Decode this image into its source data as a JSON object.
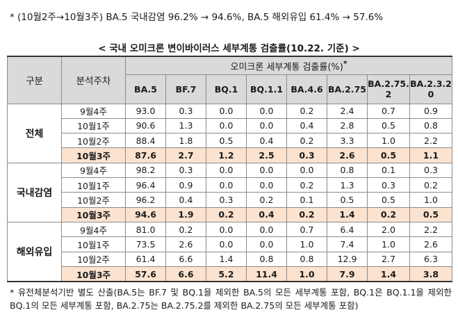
{
  "top_note": "* (10월2주→10월3주) BA.5 국내감염 96.2% → 94.6%, BA.5 해외유입 61.4% → 57.6%",
  "title": "< 국내 오미크론 변이바이러스 세부계통 검출률(10.22. 기준) >",
  "table": {
    "col_group": "구분",
    "col_week": "분석주차",
    "lineage_header": "오미크론 세부계통 검출률(%)",
    "lineage_header_mark": "*",
    "variants": [
      "BA.5",
      "BF.7",
      "BQ.1",
      "BQ.1.1",
      "BA.4.6",
      "BA.2.75",
      "BA.2.75.2",
      "BA.2.3.20"
    ],
    "groups": [
      {
        "name": "전체",
        "rows": [
          {
            "week": "9월4주",
            "values": [
              "93.0",
              "0.3",
              "0.0",
              "0.0",
              "0.2",
              "2.4",
              "0.7",
              "0.9"
            ]
          },
          {
            "week": "10월1주",
            "values": [
              "90.6",
              "1.3",
              "0.0",
              "0.0",
              "0.4",
              "2.8",
              "0.5",
              "0.8"
            ]
          },
          {
            "week": "10월2주",
            "values": [
              "88.4",
              "1.8",
              "0.5",
              "0.4",
              "0.2",
              "3.3",
              "1.0",
              "2.2"
            ]
          },
          {
            "week": "10월3주",
            "values": [
              "87.6",
              "2.7",
              "1.2",
              "2.5",
              "0.3",
              "2.6",
              "0.5",
              "1.1"
            ]
          }
        ]
      },
      {
        "name": "국내감염",
        "rows": [
          {
            "week": "9월4주",
            "values": [
              "98.2",
              "0.3",
              "0.0",
              "0.0",
              "0.0",
              "0.8",
              "0.1",
              "0.3"
            ]
          },
          {
            "week": "10월1주",
            "values": [
              "96.4",
              "0.9",
              "0.0",
              "0.0",
              "0.2",
              "1.3",
              "0.3",
              "0.2"
            ]
          },
          {
            "week": "10월2주",
            "values": [
              "96.2",
              "0.4",
              "0.3",
              "0.2",
              "0.1",
              "0.5",
              "0.5",
              "1.0"
            ]
          },
          {
            "week": "10월3주",
            "values": [
              "94.6",
              "1.9",
              "0.2",
              "0.4",
              "0.2",
              "1.4",
              "0.2",
              "0.5"
            ]
          }
        ]
      },
      {
        "name": "해외유입",
        "rows": [
          {
            "week": "9월4주",
            "values": [
              "81.0",
              "0.2",
              "0.0",
              "0.0",
              "0.7",
              "6.4",
              "2.0",
              "2.2"
            ]
          },
          {
            "week": "10월1주",
            "values": [
              "73.5",
              "2.6",
              "0.0",
              "0.0",
              "1.0",
              "7.4",
              "1.0",
              "2.6"
            ]
          },
          {
            "week": "10월2주",
            "values": [
              "61.4",
              "6.6",
              "1.4",
              "0.8",
              "0.8",
              "12.9",
              "2.7",
              "6.3"
            ]
          },
          {
            "week": "10월3주",
            "values": [
              "57.6",
              "6.6",
              "5.2",
              "11.4",
              "1.0",
              "7.9",
              "1.4",
              "3.8"
            ]
          }
        ]
      }
    ]
  },
  "foot_note": "* 유전체분석기반 별도 산출(BA.5는 BF.7 및 BQ.1을 제외한 BA.5의 모든 세부계통 포함, BQ.1은 BQ.1.1을 제외한 BQ.1의 모든 세부계통 포함, BA.2.75는 BA.2.75.2를 제외한 BA.2.75의 모든 세부계통 포함)",
  "colors": {
    "header_bg": "#dadada",
    "highlight_row_bg": "#fbe3d0",
    "border": "#8a8a8a"
  }
}
